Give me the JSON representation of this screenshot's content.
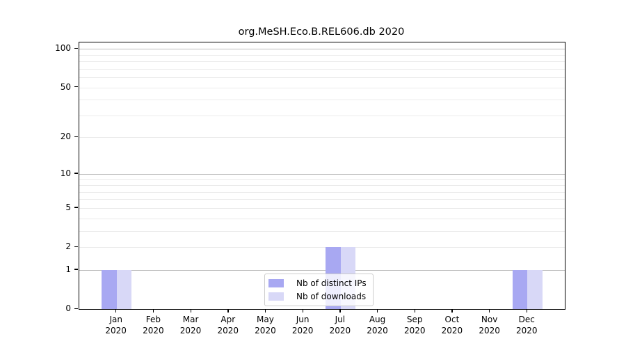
{
  "header": {
    "title": "org.MeSH.Eco.B.REL606.db 2020"
  },
  "chart_data": {
    "type": "bar",
    "title": "org.MeSH.Eco.B.REL606.db 2020",
    "categories": [
      "Jan 2020",
      "Feb 2020",
      "Mar 2020",
      "Apr 2020",
      "May 2020",
      "Jun 2020",
      "Jul 2020",
      "Aug 2020",
      "Sep 2020",
      "Oct 2020",
      "Nov 2020",
      "Dec 2020"
    ],
    "series": [
      {
        "name": "Nb of distinct IPs",
        "color": "#a8a8f2",
        "values": [
          1,
          0,
          0,
          0,
          0,
          0,
          2,
          0,
          0,
          0,
          0,
          1
        ]
      },
      {
        "name": "Nb of downloads",
        "color": "#d8d8f7",
        "values": [
          1,
          0,
          0,
          0,
          0,
          0,
          2,
          0,
          0,
          0,
          0,
          1
        ]
      }
    ],
    "xlabel": "",
    "ylabel": "",
    "yscale": "log1p",
    "ylim": [
      0,
      113
    ],
    "yticks": [
      0,
      1,
      2,
      5,
      10,
      20,
      50,
      100
    ],
    "grid": true,
    "grid_decades": [
      1,
      10,
      100
    ],
    "grid_minor": [
      2,
      3,
      4,
      5,
      6,
      7,
      8,
      9,
      20,
      30,
      40,
      50,
      60,
      70,
      80,
      90
    ],
    "legend_position": "lower center"
  }
}
